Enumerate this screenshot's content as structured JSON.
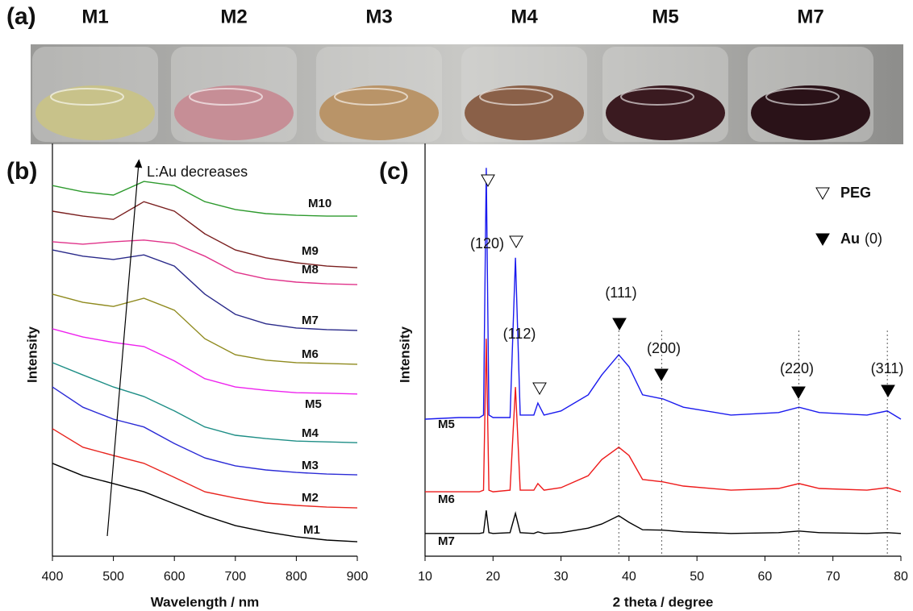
{
  "panel_labels": [
    "(a)",
    "(b)",
    "(c)"
  ],
  "photo": {
    "labels": [
      "M1",
      "M2",
      "M3",
      "M4",
      "M5",
      "M7"
    ]
  },
  "chart_data": [
    {
      "type": "line",
      "x_label": "Wavelength / nm",
      "y_label": "Intensity",
      "annotation": "L:Au decreases",
      "x": [
        400,
        450,
        500,
        550,
        600,
        650,
        700,
        750,
        800,
        850,
        900
      ],
      "xlim": [
        400,
        900
      ],
      "xticks": [
        400,
        500,
        600,
        700,
        800,
        900
      ],
      "ylim": [
        0,
        100
      ],
      "series": [
        {
          "name": "M1",
          "color": "#000000",
          "values": [
            22.5,
            19.5,
            17.6,
            15.6,
            12.7,
            9.8,
            7.4,
            5.9,
            4.7,
            3.9,
            3.5
          ]
        },
        {
          "name": "M2",
          "color": "#e8251f",
          "values": [
            30.9,
            26.4,
            24.4,
            22.5,
            19.1,
            15.6,
            14.1,
            12.9,
            12.3,
            11.9,
            11.7
          ]
        },
        {
          "name": "M3",
          "color": "#2b2bd6",
          "values": [
            41.0,
            36.1,
            33.2,
            31.3,
            27.3,
            23.8,
            21.9,
            20.9,
            20.3,
            19.9,
            19.7
          ]
        },
        {
          "name": "M4",
          "color": "#1e8e86",
          "values": [
            46.9,
            43.9,
            41.0,
            38.7,
            35.2,
            31.3,
            29.3,
            28.5,
            27.9,
            27.7,
            27.5
          ]
        },
        {
          "name": "M5",
          "color": "#ee22ee",
          "values": [
            55.1,
            53.1,
            51.8,
            50.8,
            47.3,
            43.0,
            41.0,
            40.2,
            39.6,
            39.5,
            39.3
          ]
        },
        {
          "name": "M6",
          "color": "#8f8a1e",
          "values": [
            63.5,
            61.5,
            60.5,
            62.5,
            59.6,
            52.7,
            48.8,
            47.5,
            46.9,
            46.7,
            46.5
          ]
        },
        {
          "name": "M7",
          "color": "#2a2a8a",
          "values": [
            74.2,
            72.7,
            71.9,
            73.0,
            70.3,
            63.5,
            58.6,
            56.3,
            55.3,
            54.9,
            54.7
          ]
        },
        {
          "name": "M8",
          "color": "#e0338a",
          "values": [
            76.2,
            75.6,
            76.2,
            76.6,
            75.8,
            72.7,
            68.8,
            67.2,
            66.4,
            66.0,
            65.8
          ]
        },
        {
          "name": "M9",
          "color": "#7a1f1f",
          "values": [
            83.6,
            82.4,
            81.6,
            85.9,
            83.6,
            78.1,
            74.2,
            72.3,
            71.1,
            70.3,
            69.9
          ]
        },
        {
          "name": "M10",
          "color": "#2e9a2e",
          "values": [
            89.8,
            88.3,
            87.5,
            90.8,
            89.8,
            85.9,
            84.0,
            83.0,
            82.6,
            82.4,
            82.4
          ]
        }
      ]
    },
    {
      "type": "line",
      "x_label": "2 theta / degree",
      "y_label": "Intensity",
      "x": [
        10,
        15,
        18,
        18.6,
        19,
        19.4,
        20,
        22.5,
        23.3,
        24,
        26,
        26.6,
        27.5,
        30,
        34,
        36,
        38.5,
        40,
        42,
        45,
        48,
        55,
        62,
        65,
        68,
        75,
        78,
        80
      ],
      "xlim": [
        10,
        80
      ],
      "xticks": [
        10,
        20,
        30,
        40,
        50,
        60,
        70,
        80
      ],
      "ylim": [
        0,
        100
      ],
      "reference_lines": [
        38.5,
        44.8,
        65,
        78
      ],
      "peak_labels": [
        "(120)",
        "(112)",
        "(111)",
        "(200)",
        "(220)",
        "(311)"
      ],
      "legend": [
        {
          "marker": "open",
          "name": "PEG"
        },
        {
          "marker": "filled",
          "name": "Au",
          "suffix": "(0)"
        }
      ],
      "series": [
        {
          "name": "M5",
          "color": "#1a1aee",
          "values": [
            33.2,
            33.6,
            33.6,
            34.2,
            94.1,
            34.2,
            33.6,
            33.6,
            72.3,
            34.2,
            34.2,
            37.1,
            34.2,
            35.2,
            39.1,
            43.9,
            48.8,
            45.9,
            39.1,
            38.1,
            36.1,
            34.2,
            34.8,
            36.1,
            34.8,
            34.2,
            35.2,
            33.2
          ]
        },
        {
          "name": "M6",
          "color": "#ee1a1a",
          "values": [
            15.6,
            15.6,
            15.6,
            16.0,
            52.7,
            16.0,
            15.6,
            16.0,
            41.0,
            16.0,
            16.0,
            17.6,
            16.0,
            16.6,
            19.5,
            23.4,
            26.4,
            24.4,
            18.6,
            18.0,
            17.0,
            16.0,
            16.4,
            17.6,
            16.4,
            16.0,
            16.6,
            15.6
          ]
        },
        {
          "name": "M7",
          "color": "#000000",
          "values": [
            5.5,
            5.5,
            5.5,
            5.7,
            11.1,
            5.7,
            5.5,
            5.7,
            10.4,
            5.7,
            5.5,
            5.9,
            5.5,
            5.7,
            6.8,
            7.8,
            9.8,
            8.2,
            6.4,
            6.3,
            5.9,
            5.5,
            5.7,
            6.1,
            5.7,
            5.5,
            5.7,
            5.5
          ]
        }
      ]
    }
  ]
}
